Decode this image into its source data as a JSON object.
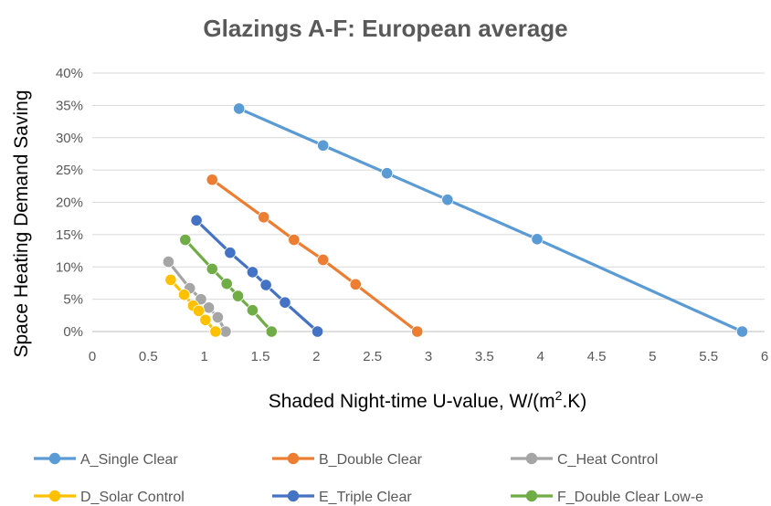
{
  "chart_data": {
    "type": "line",
    "title": "Glazings A-F: European average",
    "xlabel_main": "Shaded Night-time U-value, W/(m",
    "xlabel_sup": "2",
    "xlabel_tail": ".K)",
    "ylabel": "Space Heating Demand Saving",
    "xlim": [
      0,
      6
    ],
    "ylim": [
      0,
      0.4
    ],
    "x_ticks": [
      "0",
      "0.5",
      "1",
      "1.5",
      "2",
      "2.5",
      "3",
      "3.5",
      "4",
      "4.5",
      "5",
      "5.5",
      "6"
    ],
    "y_ticks": [
      "0%",
      "5%",
      "10%",
      "15%",
      "20%",
      "25%",
      "30%",
      "35%",
      "40%"
    ],
    "grid": "horizontal",
    "legend_position": "bottom",
    "series": [
      {
        "name": "A_Single Clear",
        "color": "#5b9bd5",
        "points": [
          [
            1.31,
            0.345
          ],
          [
            2.06,
            0.288
          ],
          [
            2.63,
            0.245
          ],
          [
            3.17,
            0.204
          ],
          [
            3.97,
            0.143
          ],
          [
            5.8,
            0.0
          ]
        ]
      },
      {
        "name": "B_Double Clear",
        "color": "#ed7d31",
        "points": [
          [
            1.07,
            0.235
          ],
          [
            1.53,
            0.177
          ],
          [
            1.8,
            0.142
          ],
          [
            2.06,
            0.111
          ],
          [
            2.35,
            0.073
          ],
          [
            2.9,
            0.0
          ]
        ]
      },
      {
        "name": "C_Heat Control",
        "color": "#a5a5a5",
        "points": [
          [
            0.68,
            0.108
          ],
          [
            0.87,
            0.067
          ],
          [
            0.97,
            0.05
          ],
          [
            1.04,
            0.037
          ],
          [
            1.12,
            0.022
          ],
          [
            1.19,
            0.0
          ]
        ]
      },
      {
        "name": "D_Solar Control",
        "color": "#ffc000",
        "points": [
          [
            0.7,
            0.08
          ],
          [
            0.82,
            0.057
          ],
          [
            0.9,
            0.04
          ],
          [
            0.95,
            0.032
          ],
          [
            1.01,
            0.018
          ],
          [
            1.1,
            0.0
          ]
        ]
      },
      {
        "name": "E_Triple Clear",
        "color": "#4472c4",
        "points": [
          [
            0.93,
            0.172
          ],
          [
            1.23,
            0.122
          ],
          [
            1.43,
            0.092
          ],
          [
            1.55,
            0.072
          ],
          [
            1.72,
            0.045
          ],
          [
            2.01,
            0.0
          ]
        ]
      },
      {
        "name": "F_Double Clear Low-e",
        "color": "#70ad47",
        "points": [
          [
            0.83,
            0.142
          ],
          [
            1.07,
            0.097
          ],
          [
            1.2,
            0.074
          ],
          [
            1.3,
            0.055
          ],
          [
            1.43,
            0.033
          ],
          [
            1.6,
            0.0
          ]
        ]
      }
    ]
  }
}
